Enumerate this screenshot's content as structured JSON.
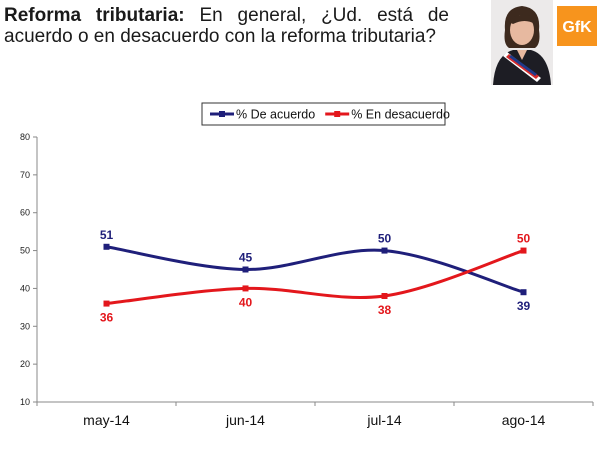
{
  "header": {
    "title_bold": "Reforma tributaria:",
    "title_rest": " En general, ¿Ud. está de acuerdo o en desacuerdo con la reforma tributaria?",
    "logo_text": "GfK",
    "logo_color": "#f7941d"
  },
  "chart_data": {
    "type": "line",
    "categories": [
      "may-14",
      "jun-14",
      "jul-14",
      "ago-14"
    ],
    "series": [
      {
        "name": "% De acuerdo",
        "values": [
          51,
          45,
          50,
          39
        ],
        "color": "#1f1f7a"
      },
      {
        "name": "% En desacuerdo",
        "values": [
          36,
          40,
          38,
          50
        ],
        "color": "#e3171c"
      }
    ],
    "ylim": [
      10,
      80
    ],
    "yticks": [
      10,
      20,
      30,
      40,
      50,
      60,
      70,
      80
    ],
    "legend": "top",
    "grid": false
  }
}
